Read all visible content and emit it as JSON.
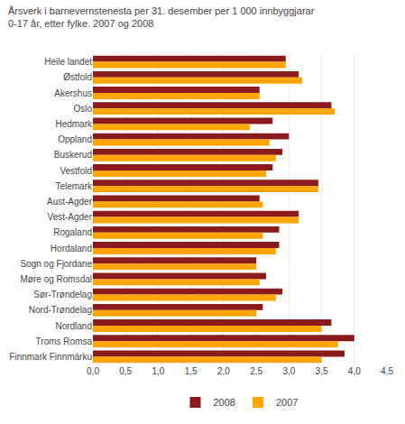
{
  "chart_data": {
    "type": "bar",
    "orientation": "horizontal",
    "title": "Årsverk i barnevernstenesta per 31. desember per 1 000 innbyggjarar",
    "subtitle": "0-17 år, etter fylke. 2007 og 2008",
    "categories": [
      "Heile landet",
      "Østfold",
      "Akershus",
      "Oslo",
      "Hedmark",
      "Oppland",
      "Buskerud",
      "Vestfold",
      "Telemark",
      "Aust-Agder",
      "Vest-Agder",
      "Rogaland",
      "Hordaland",
      "Sogn og Fjordane",
      "Møre og Romsdal",
      "Sør-Trøndelag",
      "Nord-Trøndelag",
      "Nordland",
      "Troms Romsa",
      "Finnmark Finnmárku"
    ],
    "series": [
      {
        "name": "2008",
        "color": "#8B1A1A",
        "values": [
          2.95,
          3.15,
          2.55,
          3.65,
          2.75,
          3.0,
          2.9,
          2.75,
          3.45,
          2.55,
          3.15,
          2.85,
          2.85,
          2.5,
          2.65,
          2.9,
          2.6,
          3.65,
          4.0,
          3.85
        ]
      },
      {
        "name": "2007",
        "color": "#FFA500",
        "values": [
          2.95,
          3.2,
          2.55,
          3.7,
          2.4,
          2.7,
          2.8,
          2.65,
          3.45,
          2.6,
          3.15,
          2.6,
          2.8,
          2.5,
          2.55,
          2.8,
          2.5,
          3.5,
          3.75,
          3.5
        ]
      }
    ],
    "xlim": [
      0,
      4.5
    ],
    "xticks": [
      {
        "value": 0.0,
        "label": "0,0"
      },
      {
        "value": 0.5,
        "label": "0,5"
      },
      {
        "value": 1.0,
        "label": "1,0"
      },
      {
        "value": 1.5,
        "label": "1,5"
      },
      {
        "value": 2.0,
        "label": "2,0"
      },
      {
        "value": 2.5,
        "label": "2,5"
      },
      {
        "value": 3.0,
        "label": "3,0"
      },
      {
        "value": 3.5,
        "label": "3,5"
      },
      {
        "value": 4.0,
        "label": "4,0"
      },
      {
        "value": 4.5,
        "label": "4,5"
      }
    ],
    "grid": true,
    "legend": "bottom"
  }
}
